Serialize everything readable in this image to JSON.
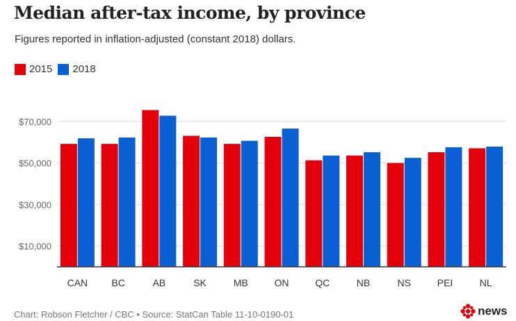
{
  "title": "Median after-tax income, by province",
  "subtitle": "Figures reported in inflation-adjusted (constant 2018) dollars.",
  "footer": "Chart: Robson Fletcher / CBC • Source: StatCan Table 11-10-0190-01",
  "logo_text": "news",
  "colors": {
    "2015": "#e3000b",
    "2018": "#0a5fd3",
    "grid": "#dddddd",
    "axis": "#333333"
  },
  "chart_data": {
    "type": "bar",
    "title": "Median after-tax income, by province",
    "subtitle": "Figures reported in inflation-adjusted (constant 2018) dollars.",
    "categories": [
      "CAN",
      "BC",
      "AB",
      "SK",
      "MB",
      "ON",
      "QC",
      "NB",
      "NS",
      "PEI",
      "NL"
    ],
    "series": [
      {
        "name": "2015",
        "values": [
          59200,
          59200,
          75500,
          63100,
          59200,
          62600,
          51300,
          53600,
          50000,
          55200,
          57100
        ]
      },
      {
        "name": "2018",
        "values": [
          61900,
          62300,
          72800,
          62300,
          60700,
          66600,
          53600,
          55200,
          52500,
          57600,
          57900
        ]
      }
    ],
    "yticks": [
      10000,
      30000,
      50000,
      70000
    ],
    "ytick_labels": [
      "$10,000",
      "$30,000",
      "$50,000",
      "$70,000"
    ],
    "ylim": [
      0,
      80000
    ],
    "xlabel": "",
    "ylabel": "",
    "grid": true,
    "legend": "top-left"
  }
}
